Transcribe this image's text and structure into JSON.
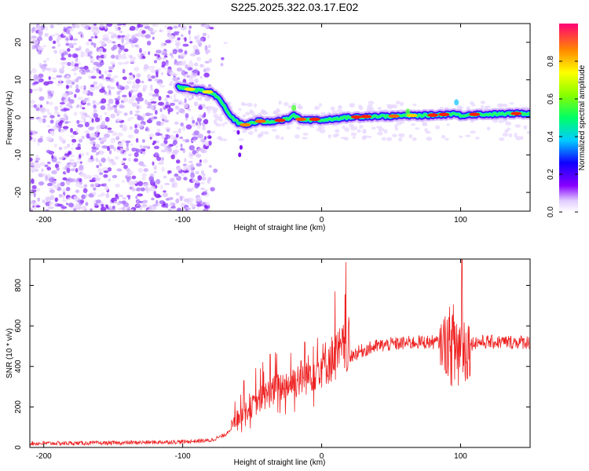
{
  "title": "S225.2025.322.03.17.E02",
  "chart_data": [
    {
      "type": "heatmap",
      "xlabel": "Height of straight line (km)",
      "ylabel": "Frequency (Hz)",
      "xlim": [
        -210,
        150
      ],
      "ylim": [
        -25,
        25
      ],
      "xticks": [
        -200,
        -100,
        0,
        100
      ],
      "yticks": [
        -20,
        -10,
        0,
        10,
        20
      ],
      "colorbar": {
        "label": "Normalized spectral amplitude",
        "range": [
          0.0,
          1.0
        ],
        "ticks": [
          "0.0",
          "0.2",
          "0.4",
          "0.6",
          "0.8"
        ]
      },
      "ridge": {
        "x": [
          -103,
          -95,
          -85,
          -78,
          -72,
          -66,
          -60,
          -55,
          -50,
          -45,
          -40,
          -35,
          -30,
          -25,
          -20,
          -15,
          -10,
          -5,
          0,
          10,
          20,
          30,
          40,
          50,
          60,
          70,
          80,
          90,
          95,
          100,
          105,
          110,
          120,
          130,
          140,
          150
        ],
        "y": [
          8,
          7.5,
          7,
          6.5,
          4,
          0.5,
          -1.5,
          -2,
          -1.5,
          -1,
          -1.2,
          -1,
          -0.8,
          -0.5,
          0.5,
          -0.5,
          -0.8,
          -0.5,
          -0.8,
          -0.3,
          0,
          0.2,
          0.3,
          0.3,
          0.5,
          0.5,
          0.6,
          0.8,
          1.0,
          0.5,
          0.7,
          0.8,
          0.8,
          0.9,
          1.0,
          1.0
        ]
      }
    },
    {
      "type": "line",
      "xlabel": "Height of straight line (km)",
      "ylabel": "SNR (10 * v/v)",
      "xlim": [
        -210,
        150
      ],
      "ylim": [
        0,
        930
      ],
      "xticks": [
        -200,
        -100,
        0,
        100
      ],
      "yticks": [
        0,
        200,
        400,
        600,
        800
      ],
      "color": "#ee2222",
      "trend": {
        "x": [
          -210,
          -150,
          -100,
          -80,
          -70,
          -60,
          -50,
          -40,
          -30,
          -20,
          -10,
          0,
          10,
          20,
          30,
          40,
          50,
          60,
          70,
          80,
          90,
          95,
          100,
          105,
          110,
          120,
          130,
          140,
          150
        ],
        "y": [
          20,
          22,
          28,
          35,
          60,
          130,
          180,
          230,
          260,
          290,
          320,
          360,
          400,
          450,
          480,
          500,
          510,
          515,
          520,
          520,
          515,
          500,
          480,
          500,
          520,
          520,
          520,
          520,
          520
        ]
      }
    }
  ]
}
